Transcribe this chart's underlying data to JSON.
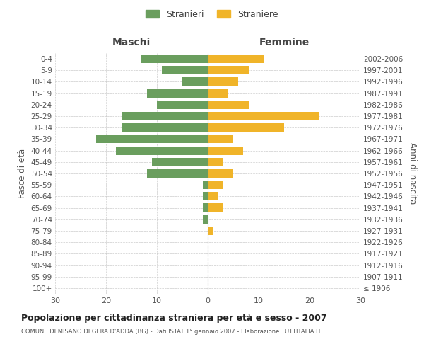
{
  "age_groups": [
    "100+",
    "95-99",
    "90-94",
    "85-89",
    "80-84",
    "75-79",
    "70-74",
    "65-69",
    "60-64",
    "55-59",
    "50-54",
    "45-49",
    "40-44",
    "35-39",
    "30-34",
    "25-29",
    "20-24",
    "15-19",
    "10-14",
    "5-9",
    "0-4"
  ],
  "birth_years": [
    "≤ 1906",
    "1907-1911",
    "1912-1916",
    "1917-1921",
    "1922-1926",
    "1927-1931",
    "1932-1936",
    "1937-1941",
    "1942-1946",
    "1947-1951",
    "1952-1956",
    "1957-1961",
    "1962-1966",
    "1967-1971",
    "1972-1976",
    "1977-1981",
    "1982-1986",
    "1987-1991",
    "1992-1996",
    "1997-2001",
    "2002-2006"
  ],
  "maschi": [
    0,
    0,
    0,
    0,
    0,
    0,
    1,
    1,
    1,
    1,
    12,
    11,
    18,
    22,
    17,
    17,
    10,
    12,
    5,
    9,
    13
  ],
  "femmine": [
    0,
    0,
    0,
    0,
    0,
    1,
    0,
    3,
    2,
    3,
    5,
    3,
    7,
    5,
    15,
    22,
    8,
    4,
    6,
    8,
    11
  ],
  "color_maschi": "#6a9e5e",
  "color_femmine": "#f0b429",
  "title": "Popolazione per cittadinanza straniera per età e sesso - 2007",
  "subtitle": "COMUNE DI MISANO DI GERA D'ADDA (BG) - Dati ISTAT 1° gennaio 2007 - Elaborazione TUTTITALIA.IT",
  "legend_maschi": "Stranieri",
  "legend_femmine": "Straniere",
  "xlabel_left": "Maschi",
  "xlabel_right": "Femmine",
  "ylabel_left": "Fasce di età",
  "ylabel_right": "Anni di nascita",
  "xlim": 30,
  "background_color": "#ffffff",
  "grid_color": "#cccccc"
}
